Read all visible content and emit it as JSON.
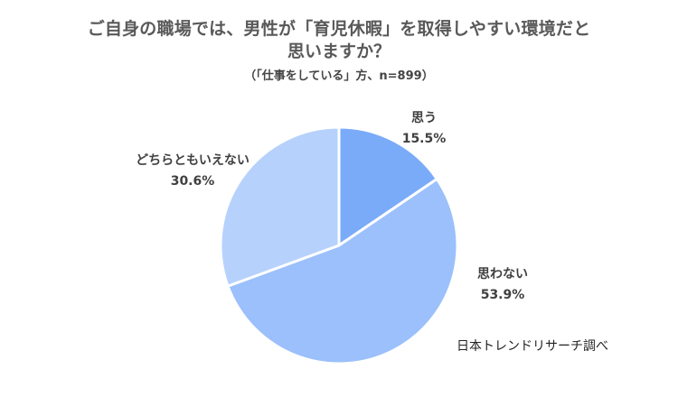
{
  "chart_data": {
    "type": "pie",
    "title_lines": [
      "ご自身の職場では、男性が「育児休暇」を取得しやすい環境だと",
      "思いますか？"
    ],
    "subtitle": "（「仕事をしている」方、n=899）",
    "source": "日本トレンドリサーチ調べ",
    "slices": [
      {
        "label": "思う",
        "value": 15.5,
        "value_label": "15.5%",
        "color": "#7AABF8"
      },
      {
        "label": "思わない",
        "value": 53.9,
        "value_label": "53.9%",
        "color": "#9BC0FB"
      },
      {
        "label": "どちらともいえない",
        "value": 30.6,
        "value_label": "30.6%",
        "color": "#B6D1FC"
      }
    ],
    "start_direction": "12 o'clock",
    "order": "clockwise",
    "legend": "none (labels beside slices)"
  }
}
